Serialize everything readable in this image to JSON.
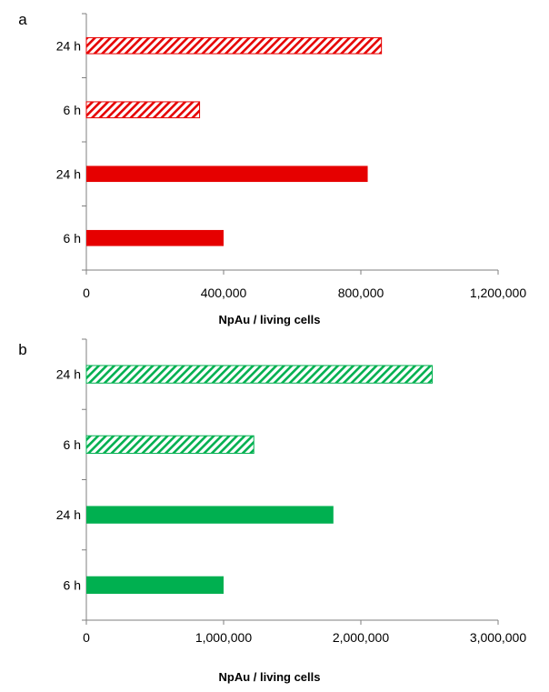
{
  "colors": {
    "red": "#e60000",
    "green": "#00b050",
    "axis": "#7f7f7f"
  },
  "chart_data": [
    {
      "type": "bar",
      "orientation": "horizontal",
      "panel_label": "a",
      "color": "#e60000",
      "categories": [
        "6 h",
        "24 h",
        "6 h",
        "24 h"
      ],
      "values": [
        400000,
        820000,
        330000,
        860000
      ],
      "bar_styles": [
        "solid",
        "solid",
        "hatched",
        "hatched"
      ],
      "xlabel": "NpAu / living cells",
      "xlim": [
        0,
        1200000
      ],
      "xticks": [
        0,
        400000,
        800000,
        1200000
      ],
      "xtick_labels": [
        "0",
        "400,000",
        "800,000",
        "1,200,000"
      ],
      "grid": false
    },
    {
      "type": "bar",
      "orientation": "horizontal",
      "panel_label": "b",
      "color": "#00b050",
      "categories": [
        "6 h",
        "24 h",
        "6 h",
        "24 h"
      ],
      "values": [
        1000000,
        1800000,
        1220000,
        2520000
      ],
      "bar_styles": [
        "solid",
        "solid",
        "hatched",
        "hatched"
      ],
      "xlabel": "NpAu / living cells",
      "xlim": [
        0,
        3000000
      ],
      "xticks": [
        0,
        1000000,
        2000000,
        3000000
      ],
      "xtick_labels": [
        "0",
        "1,000,000",
        "2,000,000",
        "3,000,000"
      ],
      "grid": false
    }
  ]
}
